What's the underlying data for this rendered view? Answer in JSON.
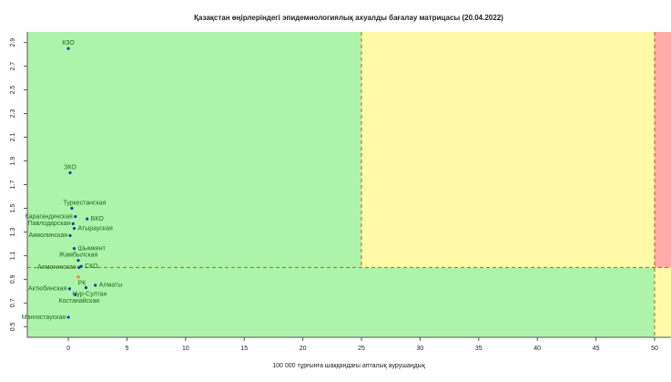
{
  "chart_data": {
    "type": "scatter",
    "title": "Қазақстан өңірлеріндегі эпидемиологиялық ахуалды бағалау матрицасы  (20.04.2022)",
    "x_label": "100 000 тұрғынға шаққандағы апталық аурушаңдық",
    "labels": [
      "КЗО",
      "ЗКО",
      "Туркестанская",
      "Карагандинская",
      "ВКО",
      "Павлодарская",
      "Атырауская",
      "Акмолинская",
      "Шымкент",
      "Жамбылская",
      "СКО",
      "Алматинская",
      "РК",
      "Алматы",
      "Нур-Султан",
      "Актюбинская",
      "Костанайская",
      "Мангистауская"
    ],
    "x": [
      0,
      0.15,
      0.3,
      0.6,
      1.6,
      0.4,
      0.5,
      0.15,
      0.5,
      0.85,
      1.1,
      0.9,
      0.85,
      2.3,
      1.5,
      0.1,
      0.6,
      0
    ],
    "y": [
      2.85,
      1.8,
      1.5,
      1.43,
      1.41,
      1.37,
      1.33,
      1.27,
      1.16,
      1.06,
      1.01,
      1.0,
      0.92,
      0.85,
      0.83,
      0.82,
      0.77,
      0.58
    ],
    "colors": [
      "#1a3fa0",
      "#1a3fa0",
      "#1a3fa0",
      "#1a3fa0",
      "#1a3fa0",
      "#1a3fa0",
      "#1a3fa0",
      "#1a3fa0",
      "#1a3fa0",
      "#1a3fa0",
      "#1a3fa0",
      "#1a3fa0",
      "#e08a1e",
      "#1a3fa0",
      "#1a3fa0",
      "#1a3fa0",
      "#1a3fa0",
      "#1a3fa0"
    ],
    "x_thresholds": [
      25,
      50
    ],
    "y_threshold": 1,
    "zone_colors": {
      "green": "#adf4aa",
      "yellow": "#fffaa8",
      "red": "#ffaaaa"
    },
    "xlim": [
      -3.5,
      51.4
    ],
    "ylim": [
      0.41,
      2.99
    ],
    "xticks": [
      0,
      5,
      10,
      15,
      20,
      25,
      30,
      35,
      40,
      45,
      50
    ],
    "yticks": [
      0.5,
      0.7,
      0.9,
      1.1,
      1.3,
      1.5,
      1.7,
      1.9,
      2.1,
      2.3,
      2.5,
      2.7,
      2.9
    ]
  }
}
